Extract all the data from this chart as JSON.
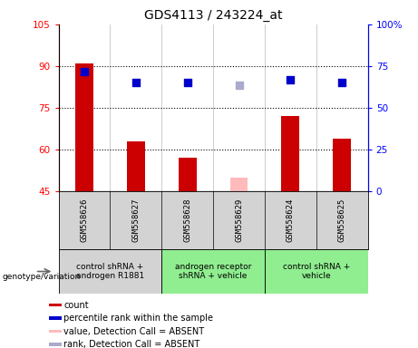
{
  "title": "GDS4113 / 243224_at",
  "samples": [
    "GSM558626",
    "GSM558627",
    "GSM558628",
    "GSM558629",
    "GSM558624",
    "GSM558625"
  ],
  "bar_values": [
    91,
    63,
    57,
    null,
    72,
    64
  ],
  "absent_bar_value": 50,
  "absent_bar_color": "#ffbbbb",
  "rank_dots": [
    88,
    84,
    84,
    null,
    85,
    84
  ],
  "rank_dot_color": "#0000cc",
  "absent_rank_dot": 83,
  "absent_rank_dot_color": "#aaaacc",
  "bar_color": "#cc0000",
  "ylim_left": [
    45,
    105
  ],
  "ylim_right": [
    0,
    100
  ],
  "yticks_left": [
    45,
    60,
    75,
    90,
    105
  ],
  "ytick_labels_left": [
    "45",
    "60",
    "75",
    "90",
    "105"
  ],
  "yticks_right": [
    0,
    25,
    50,
    75,
    100
  ],
  "ytick_labels_right": [
    "0",
    "25",
    "50",
    "75",
    "100%"
  ],
  "hlines": [
    60,
    75,
    90
  ],
  "groups": [
    {
      "label": "control shRNA +\nandrogen R1881",
      "sample_range": [
        0,
        1
      ],
      "color": "#d3d3d3"
    },
    {
      "label": "androgen receptor\nshRNA + vehicle",
      "sample_range": [
        2,
        3
      ],
      "color": "#90ee90"
    },
    {
      "label": "control shRNA +\nvehicle",
      "sample_range": [
        4,
        5
      ],
      "color": "#90ee90"
    }
  ],
  "legend_items": [
    {
      "label": "count",
      "color": "#cc0000"
    },
    {
      "label": "percentile rank within the sample",
      "color": "#0000cc"
    },
    {
      "label": "value, Detection Call = ABSENT",
      "color": "#ffbbbb"
    },
    {
      "label": "rank, Detection Call = ABSENT",
      "color": "#aaaacc"
    }
  ],
  "bar_width": 0.35,
  "dot_size": 40,
  "title_fontsize": 10,
  "tick_label_fontsize": 7.5,
  "sample_label_fontsize": 6.5,
  "group_label_fontsize": 6.5,
  "legend_fontsize": 7
}
